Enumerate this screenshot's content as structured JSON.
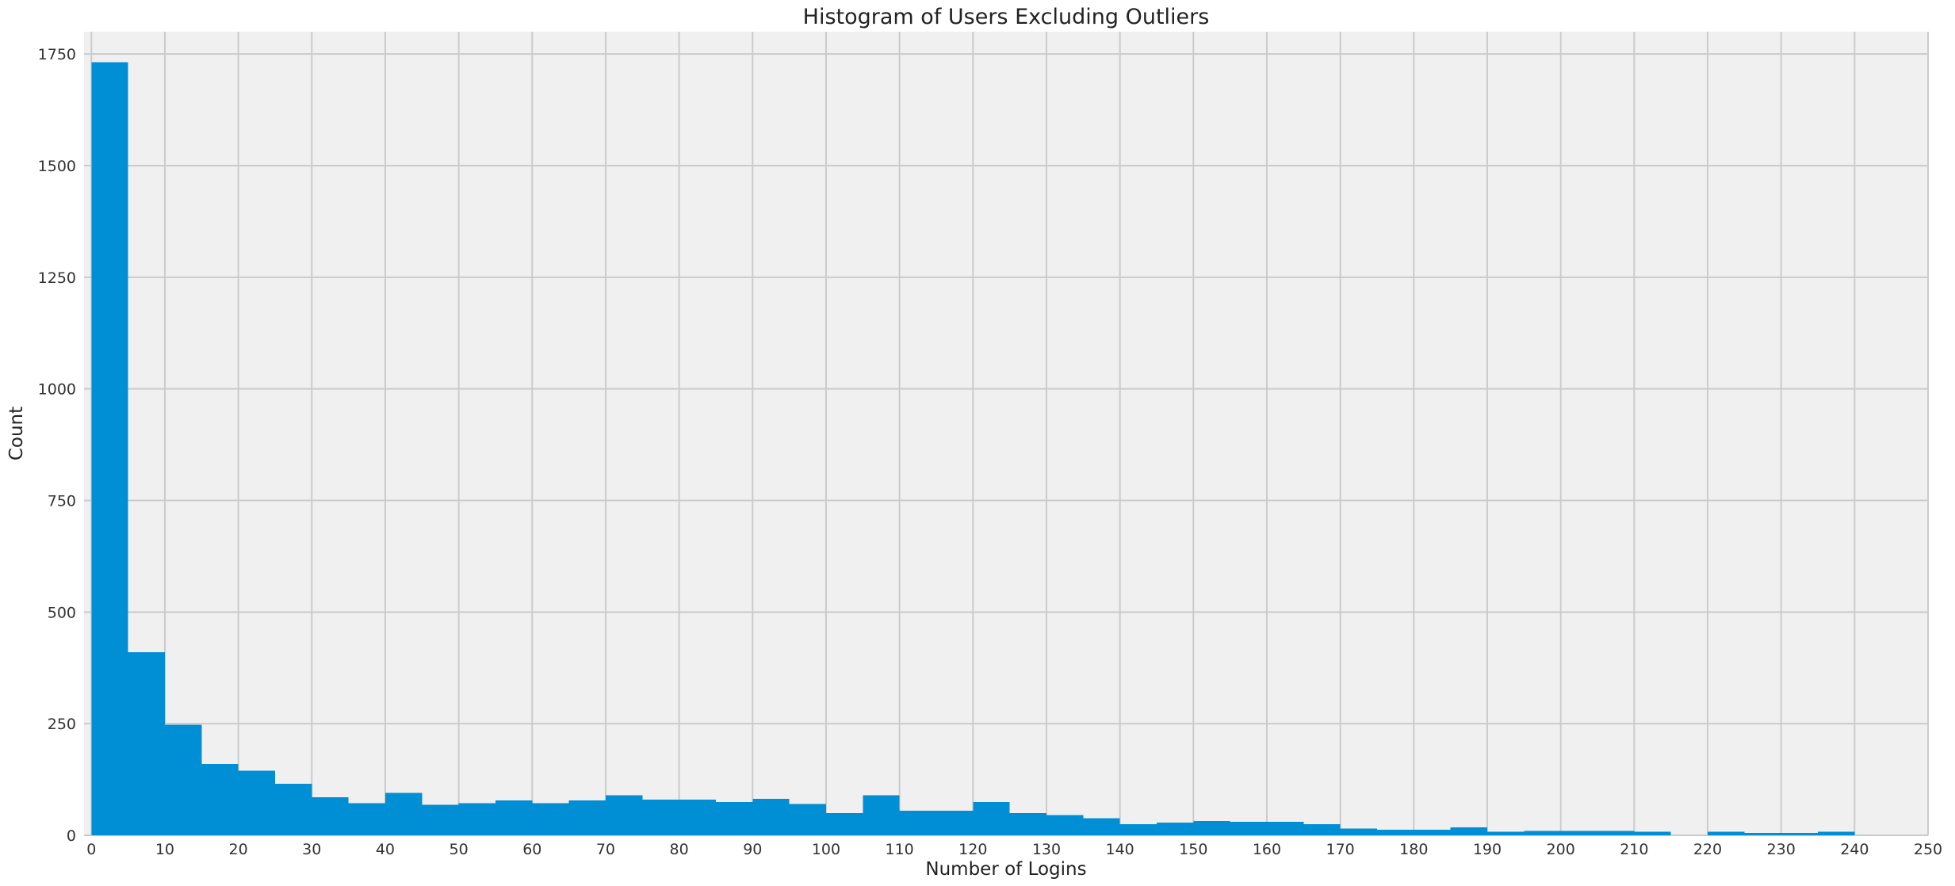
{
  "chart_data": {
    "type": "bar",
    "title": "Histogram of Users Excluding Outliers",
    "xlabel": "Number of Logins",
    "ylabel": "Count",
    "bin_width": 5,
    "bin_starts": [
      0,
      5,
      10,
      15,
      20,
      25,
      30,
      35,
      40,
      45,
      50,
      55,
      60,
      65,
      70,
      75,
      80,
      85,
      90,
      95,
      100,
      105,
      110,
      115,
      120,
      125,
      130,
      135,
      140,
      145,
      150,
      155,
      160,
      165,
      170,
      175,
      180,
      185,
      190,
      195,
      200,
      205,
      210,
      215,
      220,
      225,
      230,
      235
    ],
    "values": [
      1732,
      410,
      248,
      160,
      145,
      115,
      85,
      72,
      95,
      68,
      72,
      78,
      72,
      78,
      90,
      80,
      80,
      75,
      82,
      70,
      50,
      90,
      55,
      55,
      75,
      50,
      45,
      38,
      25,
      28,
      32,
      30,
      30,
      25,
      15,
      12,
      12,
      18,
      8,
      10,
      10,
      10,
      8,
      0,
      8,
      5,
      5,
      8
    ],
    "xlim": [
      -1,
      250
    ],
    "ylim": [
      0,
      1800
    ],
    "xticks": [
      0,
      10,
      20,
      30,
      40,
      50,
      60,
      70,
      80,
      90,
      100,
      110,
      120,
      130,
      140,
      150,
      160,
      170,
      180,
      190,
      200,
      210,
      220,
      230,
      240,
      250
    ],
    "yticks": [
      0,
      250,
      500,
      750,
      1000,
      1250,
      1500,
      1750
    ],
    "grid": true,
    "bar_color": "#008fd5",
    "background_color": "#f0f0f0",
    "grid_color": "#cbcbcb"
  }
}
